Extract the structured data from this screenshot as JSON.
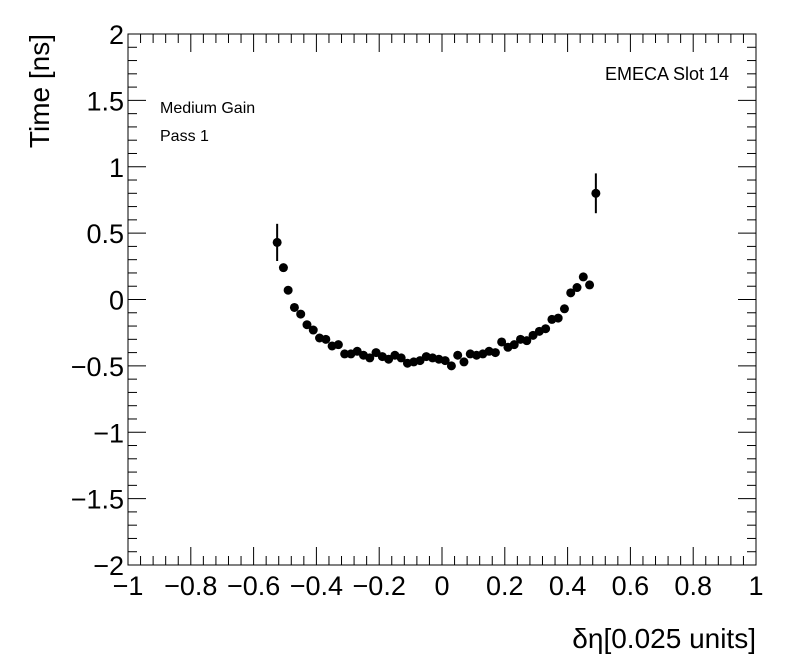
{
  "chart_data": {
    "type": "scatter",
    "xlabel": "δη[0.025 units]",
    "ylabel": "Time [ns]",
    "xlim": [
      -1,
      1
    ],
    "ylim": [
      -2,
      2
    ],
    "x_ticks": [
      "−1",
      "−0.8",
      "−0.6",
      "−0.4",
      "−0.2",
      "0",
      "0.2",
      "0.4",
      "0.6",
      "0.8",
      "1"
    ],
    "x_tick_values": [
      -1,
      -0.8,
      -0.6,
      -0.4,
      -0.2,
      0,
      0.2,
      0.4,
      0.6,
      0.8,
      1
    ],
    "y_ticks": [
      "−2",
      "−1.5",
      "−1",
      "−0.5",
      "0",
      "0.5",
      "1",
      "1.5",
      "2"
    ],
    "y_tick_values": [
      -2,
      -1.5,
      -1,
      -0.5,
      0,
      0.5,
      1,
      1.5,
      2
    ],
    "annotations": {
      "slot": "EMECA Slot 14",
      "gain": "Medium Gain",
      "pass": "Pass 1"
    },
    "grid": false,
    "series": [
      {
        "points": [
          {
            "x": -0.525,
            "y": 0.43,
            "err": 0.14
          },
          {
            "x": -0.505,
            "y": 0.24,
            "err": 0.02
          },
          {
            "x": -0.49,
            "y": 0.07,
            "err": 0.02
          },
          {
            "x": -0.47,
            "y": -0.06,
            "err": 0.02
          },
          {
            "x": -0.45,
            "y": -0.11,
            "err": 0.02
          },
          {
            "x": -0.43,
            "y": -0.19,
            "err": 0.02
          },
          {
            "x": -0.41,
            "y": -0.23,
            "err": 0.02
          },
          {
            "x": -0.39,
            "y": -0.29,
            "err": 0.02
          },
          {
            "x": -0.37,
            "y": -0.3,
            "err": 0.02
          },
          {
            "x": -0.35,
            "y": -0.35,
            "err": 0.02
          },
          {
            "x": -0.33,
            "y": -0.34,
            "err": 0.02
          },
          {
            "x": -0.31,
            "y": -0.41,
            "err": 0.02
          },
          {
            "x": -0.29,
            "y": -0.41,
            "err": 0.02
          },
          {
            "x": -0.27,
            "y": -0.39,
            "err": 0.02
          },
          {
            "x": -0.25,
            "y": -0.42,
            "err": 0.02
          },
          {
            "x": -0.23,
            "y": -0.44,
            "err": 0.02
          },
          {
            "x": -0.21,
            "y": -0.4,
            "err": 0.02
          },
          {
            "x": -0.19,
            "y": -0.43,
            "err": 0.02
          },
          {
            "x": -0.17,
            "y": -0.45,
            "err": 0.02
          },
          {
            "x": -0.15,
            "y": -0.42,
            "err": 0.02
          },
          {
            "x": -0.13,
            "y": -0.44,
            "err": 0.02
          },
          {
            "x": -0.11,
            "y": -0.48,
            "err": 0.02
          },
          {
            "x": -0.09,
            "y": -0.47,
            "err": 0.02
          },
          {
            "x": -0.07,
            "y": -0.46,
            "err": 0.02
          },
          {
            "x": -0.05,
            "y": -0.43,
            "err": 0.02
          },
          {
            "x": -0.03,
            "y": -0.44,
            "err": 0.02
          },
          {
            "x": -0.01,
            "y": -0.45,
            "err": 0.02
          },
          {
            "x": 0.01,
            "y": -0.46,
            "err": 0.02
          },
          {
            "x": 0.03,
            "y": -0.5,
            "err": 0.02
          },
          {
            "x": 0.05,
            "y": -0.42,
            "err": 0.02
          },
          {
            "x": 0.07,
            "y": -0.47,
            "err": 0.02
          },
          {
            "x": 0.09,
            "y": -0.41,
            "err": 0.02
          },
          {
            "x": 0.11,
            "y": -0.42,
            "err": 0.02
          },
          {
            "x": 0.13,
            "y": -0.41,
            "err": 0.02
          },
          {
            "x": 0.15,
            "y": -0.39,
            "err": 0.02
          },
          {
            "x": 0.17,
            "y": -0.4,
            "err": 0.02
          },
          {
            "x": 0.19,
            "y": -0.32,
            "err": 0.02
          },
          {
            "x": 0.21,
            "y": -0.36,
            "err": 0.02
          },
          {
            "x": 0.23,
            "y": -0.34,
            "err": 0.02
          },
          {
            "x": 0.25,
            "y": -0.3,
            "err": 0.02
          },
          {
            "x": 0.27,
            "y": -0.31,
            "err": 0.02
          },
          {
            "x": 0.29,
            "y": -0.27,
            "err": 0.02
          },
          {
            "x": 0.31,
            "y": -0.24,
            "err": 0.02
          },
          {
            "x": 0.33,
            "y": -0.22,
            "err": 0.02
          },
          {
            "x": 0.35,
            "y": -0.15,
            "err": 0.02
          },
          {
            "x": 0.37,
            "y": -0.14,
            "err": 0.02
          },
          {
            "x": 0.39,
            "y": -0.07,
            "err": 0.02
          },
          {
            "x": 0.41,
            "y": 0.05,
            "err": 0.02
          },
          {
            "x": 0.43,
            "y": 0.09,
            "err": 0.02
          },
          {
            "x": 0.45,
            "y": 0.17,
            "err": 0.02
          },
          {
            "x": 0.47,
            "y": 0.11,
            "err": 0.02
          },
          {
            "x": 0.49,
            "y": 0.8,
            "err": 0.15
          }
        ]
      }
    ]
  }
}
